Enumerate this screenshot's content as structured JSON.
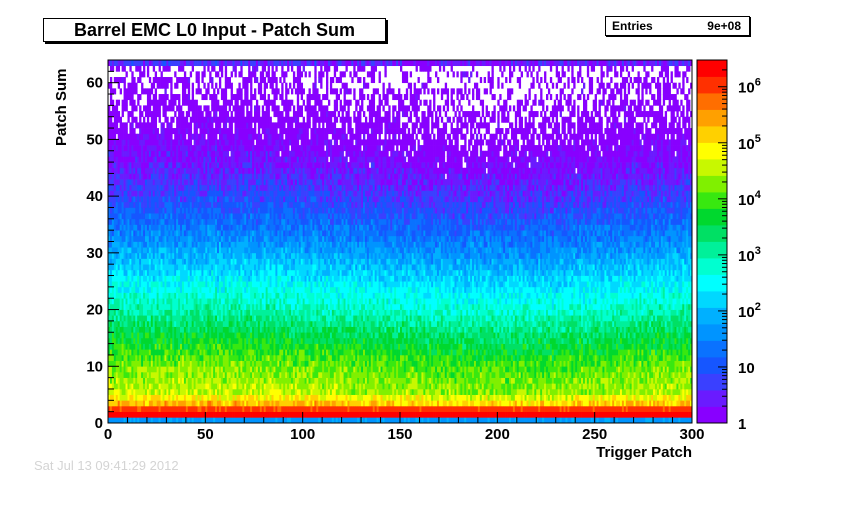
{
  "chart_data": {
    "type": "heatmap",
    "title": "Barrel EMC L0 Input - Patch Sum",
    "xlabel": "Trigger Patch",
    "ylabel": "Patch Sum",
    "xlim": [
      0,
      300
    ],
    "ylim": [
      0,
      64
    ],
    "x_ticks": [
      0,
      50,
      100,
      150,
      200,
      250,
      300
    ],
    "y_ticks": [
      0,
      10,
      20,
      30,
      40,
      50,
      60
    ],
    "z_scale": "log",
    "zlim": [
      1,
      3000000
    ],
    "z_ticks": [
      {
        "value": 1,
        "base": "1",
        "exp": ""
      },
      {
        "value": 10,
        "base": "10",
        "exp": ""
      },
      {
        "value": 100,
        "base": "10",
        "exp": "2"
      },
      {
        "value": 1000,
        "base": "10",
        "exp": "3"
      },
      {
        "value": 10000,
        "base": "10",
        "exp": "4"
      },
      {
        "value": 100000,
        "base": "10",
        "exp": "5"
      },
      {
        "value": 1000000,
        "base": "10",
        "exp": "6"
      }
    ],
    "palette": [
      "#8800ff",
      "#6a1bff",
      "#3a40ff",
      "#1656ff",
      "#0a72ff",
      "#0094ff",
      "#00b0ff",
      "#00d8ff",
      "#00ffff",
      "#00ffd0",
      "#00f09a",
      "#00e064",
      "#00d82e",
      "#38e810",
      "#80f000",
      "#c8f800",
      "#ffff00",
      "#ffd000",
      "#ffa000",
      "#ff6e00",
      "#ff3000",
      "#ff0000"
    ],
    "cell_counts_by_sum": [
      {
        "patch_sum": 0,
        "count": 50
      },
      {
        "patch_sum": 1,
        "count": 3000000
      },
      {
        "patch_sum": 2,
        "count": 1000000
      },
      {
        "patch_sum": 3,
        "count": 150000
      },
      {
        "patch_sum": 5,
        "count": 30000
      },
      {
        "patch_sum": 10,
        "count": 12000
      },
      {
        "patch_sum": 15,
        "count": 3000
      },
      {
        "patch_sum": 20,
        "count": 700
      },
      {
        "patch_sum": 25,
        "count": 200
      },
      {
        "patch_sum": 30,
        "count": 50
      },
      {
        "patch_sum": 35,
        "count": 15
      },
      {
        "patch_sum": 40,
        "count": 5
      },
      {
        "patch_sum": 45,
        "count": 2
      },
      {
        "patch_sum": 50,
        "count": 1
      },
      {
        "patch_sum": 55,
        "count": 0.6
      },
      {
        "patch_sum": 62,
        "count": 0.3
      },
      {
        "patch_sum": 63,
        "count": 3
      }
    ],
    "stats": {
      "label": "Entries",
      "value": "9e+08"
    }
  },
  "footer_stamp": "Sat Jul 13 09:41:29 2012"
}
